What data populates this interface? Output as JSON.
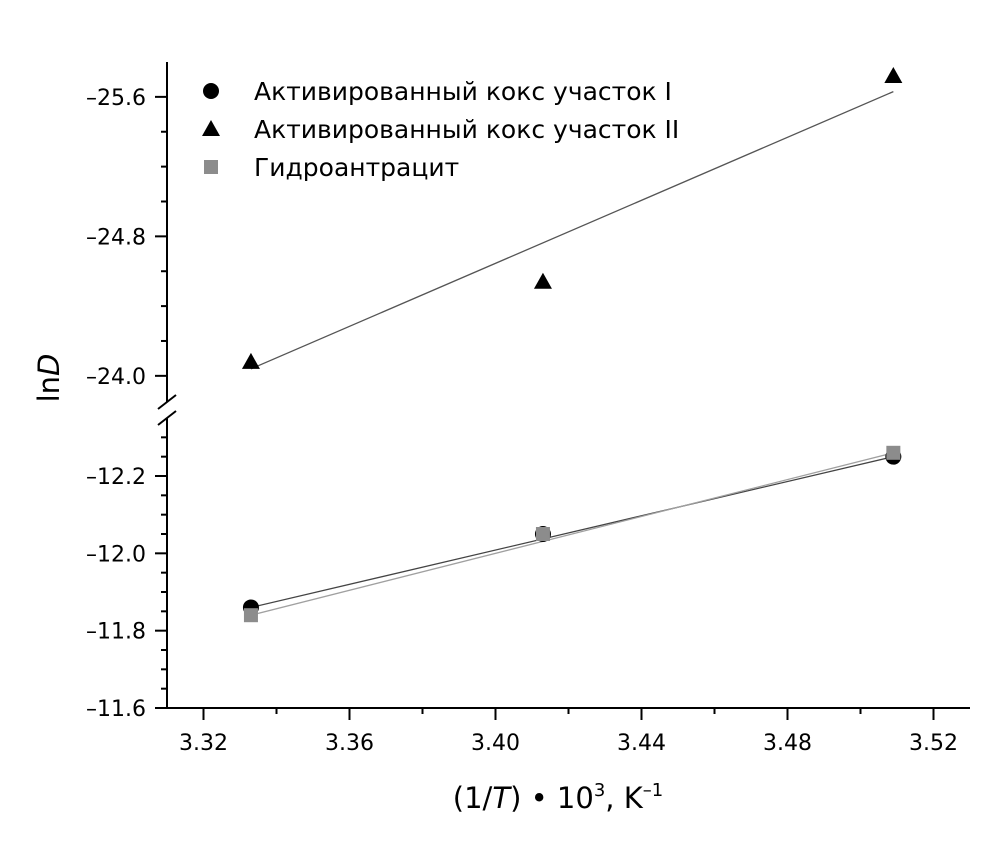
{
  "chart_data": {
    "type": "scatter",
    "xlabel": {
      "prefix": "(1/",
      "italic": "T",
      "middle": ") • 10",
      "sup1": "3",
      "after": ", K",
      "sup2": "–1"
    },
    "ylabel": {
      "prefix": "ln",
      "italic": "D"
    },
    "x_ticks": [
      "3.32",
      "3.36",
      "3.40",
      "3.44",
      "3.48",
      "3.52"
    ],
    "xlim": [
      3.31,
      3.53
    ],
    "broken_y_axis": true,
    "upper_panel": {
      "ylim": [
        -23.85,
        -25.8
      ],
      "y_ticks": [
        "–24.0",
        "–24.8",
        "–25.6"
      ]
    },
    "lower_panel": {
      "ylim": [
        -11.6,
        -12.35
      ],
      "y_ticks": [
        "–11.6",
        "–11.8",
        "–12.0",
        "–12.2"
      ]
    },
    "legend_position": "top-left",
    "series": [
      {
        "name": "Активированный кокс участок I",
        "marker": "circle",
        "color": "#000000",
        "panel": "lower",
        "x": [
          3.333,
          3.413,
          3.509
        ],
        "y": [
          -11.86,
          -12.05,
          -12.25
        ],
        "fit": {
          "x": [
            3.333,
            3.509
          ],
          "y": [
            -11.86,
            -12.25
          ],
          "color": "#444444"
        }
      },
      {
        "name": "Активированный кокс участок II",
        "marker": "triangle",
        "color": "#000000",
        "panel": "upper",
        "x": [
          3.333,
          3.413,
          3.509
        ],
        "y": [
          -24.08,
          -24.54,
          -25.72
        ],
        "fit": {
          "x": [
            3.333,
            3.509
          ],
          "y": [
            -24.04,
            -25.63
          ],
          "color": "#555555"
        }
      },
      {
        "name": "Гидроантрацит",
        "marker": "square",
        "color": "#8c8c8c",
        "panel": "lower",
        "x": [
          3.333,
          3.413,
          3.509
        ],
        "y": [
          -11.84,
          -12.05,
          -12.26
        ],
        "fit": {
          "x": [
            3.333,
            3.509
          ],
          "y": [
            -11.84,
            -12.26
          ],
          "color": "#a0a0a0"
        }
      }
    ]
  }
}
